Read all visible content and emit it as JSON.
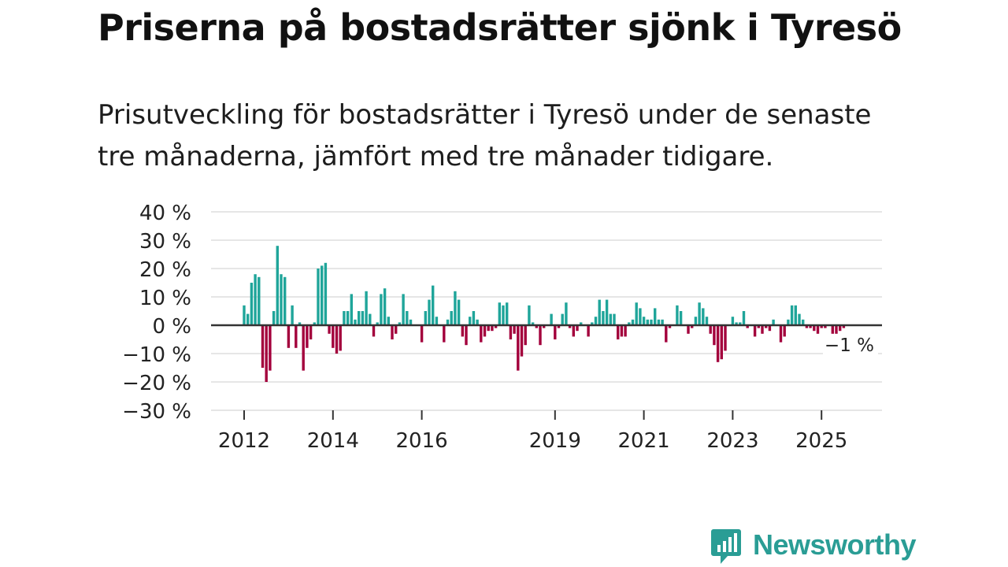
{
  "title": "Priserna på bostadsrätter sjönk i Tyresö",
  "subtitle": "Prisutveckling för bostadsrätter i Tyresö under de senaste tre månaderna, jämfört med tre månader tidigare.",
  "brand": {
    "name": "Newsworthy",
    "color": "#2a9d95",
    "icon": "newsworthy-logo-icon"
  },
  "chart_data": {
    "type": "bar",
    "start": "2012-01",
    "ylim": [
      -30,
      40
    ],
    "yticks": [
      40,
      30,
      20,
      10,
      0,
      -10,
      -20,
      -30
    ],
    "ytick_labels": [
      "40 %",
      "30 %",
      "20 %",
      "10 %",
      "0 %",
      "−10 %",
      "−20 %",
      "−30 %"
    ],
    "xticks": [
      {
        "label": "2012",
        "month_index": 0
      },
      {
        "label": "2014",
        "month_index": 24
      },
      {
        "label": "2016",
        "month_index": 48
      },
      {
        "label": "2019",
        "month_index": 84
      },
      {
        "label": "2021",
        "month_index": 108
      },
      {
        "label": "2023",
        "month_index": 132
      },
      {
        "label": "2025",
        "month_index": 156
      }
    ],
    "last_label": "−1 %",
    "colors": {
      "positive": "#1fa59a",
      "negative": "#a3003c",
      "zero_line": "#333333",
      "grid": "#dddddd"
    },
    "values": [
      7,
      4,
      15,
      18,
      17,
      -15,
      -20,
      -16,
      5,
      28,
      18,
      17,
      -8,
      7,
      -8,
      1,
      -16,
      -8,
      -5,
      1,
      20,
      21,
      22,
      -3,
      -8,
      -10,
      -9,
      5,
      5,
      11,
      2,
      5,
      5,
      12,
      4,
      -4,
      1,
      11,
      13,
      3,
      -5,
      -3,
      1,
      11,
      5,
      2,
      0,
      0,
      -6,
      5,
      9,
      14,
      3,
      0,
      -6,
      2,
      5,
      12,
      9,
      -4,
      -7,
      3,
      5,
      2,
      -6,
      -4,
      -2,
      -2,
      -1,
      8,
      7,
      8,
      -5,
      -3,
      -16,
      -11,
      -7,
      7,
      1,
      -1,
      -7,
      -1,
      0,
      4,
      -5,
      -1,
      4,
      8,
      -1,
      -4,
      -2,
      1,
      0,
      -4,
      1,
      3,
      9,
      5,
      9,
      4,
      4,
      -5,
      -4,
      -4,
      1,
      2,
      8,
      6,
      3,
      2,
      2,
      6,
      2,
      2,
      -6,
      -1,
      0,
      7,
      5,
      0,
      -3,
      -1,
      3,
      8,
      6,
      3,
      -3,
      -7,
      -13,
      -12,
      -9,
      0,
      3,
      1,
      1,
      5,
      -1,
      0,
      -4,
      -1,
      -3,
      -1,
      -2,
      2,
      0,
      -6,
      -4,
      2,
      7,
      7,
      4,
      2,
      -1,
      -1,
      -2,
      -3,
      -1,
      -1,
      0,
      -3,
      -3,
      -2,
      -1
    ]
  }
}
